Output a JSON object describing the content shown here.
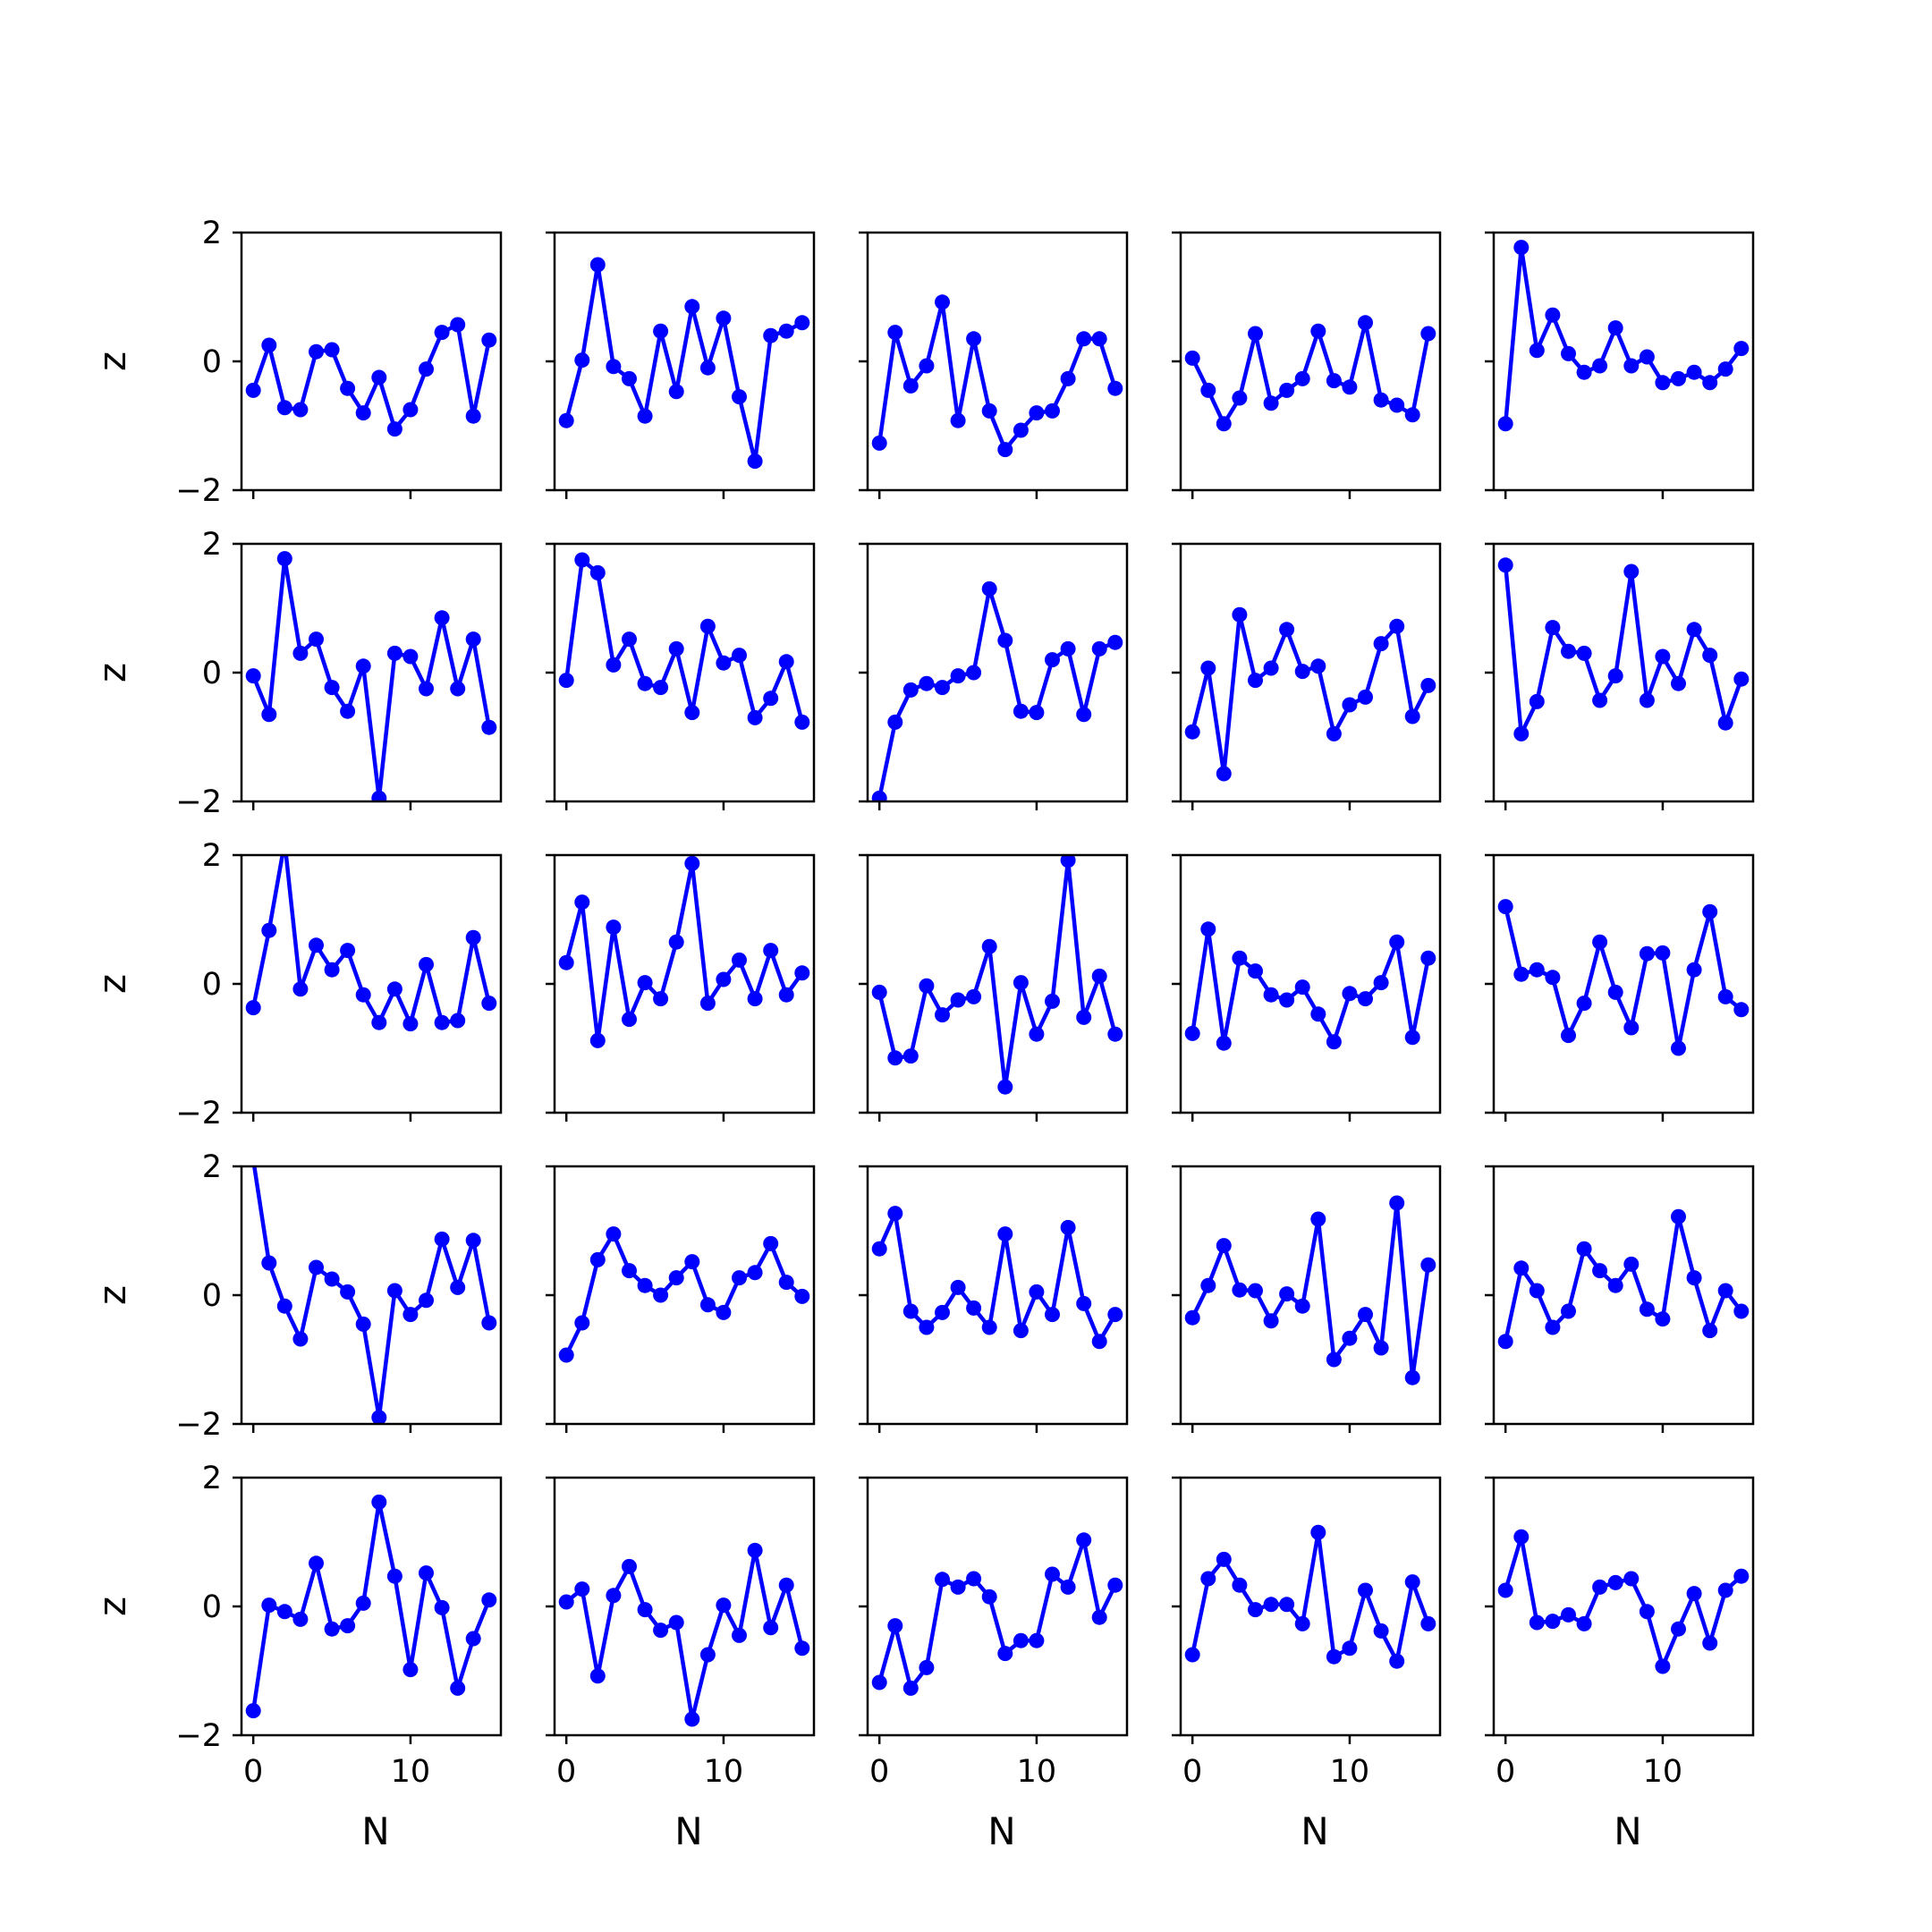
{
  "chart_data": {
    "type": "line",
    "layout": "5x5 grid of small multiples, shared x and y axes",
    "xlabel": "N",
    "ylabel": "z",
    "xlim": [
      -0.75,
      15.75
    ],
    "ylim": [
      -2,
      2
    ],
    "xticks": [
      0,
      10
    ],
    "yticks": [
      -2,
      0,
      2
    ],
    "grid": false,
    "legend": "none",
    "line_color": "#0000ff",
    "marker": "circle",
    "x": [
      0,
      1,
      2,
      3,
      4,
      5,
      6,
      7,
      8,
      9,
      10,
      11,
      12,
      13,
      14,
      15
    ],
    "panels": [
      {
        "values": [
          -0.45,
          0.25,
          -0.72,
          -0.75,
          0.15,
          0.18,
          -0.42,
          -0.8,
          -0.25,
          -1.05,
          -0.75,
          -0.12,
          0.45,
          0.57,
          -0.85,
          0.33
        ]
      },
      {
        "values": [
          -0.92,
          0.02,
          1.5,
          -0.08,
          -0.27,
          -0.85,
          0.47,
          -0.47,
          0.85,
          -0.1,
          0.67,
          -0.55,
          -1.55,
          0.4,
          0.47,
          0.6
        ]
      },
      {
        "values": [
          -1.27,
          0.45,
          -0.38,
          -0.07,
          0.92,
          -0.92,
          0.35,
          -0.77,
          -1.37,
          -1.07,
          -0.8,
          -0.77,
          -0.27,
          0.35,
          0.35,
          -0.42
        ]
      },
      {
        "values": [
          0.05,
          -0.45,
          -0.97,
          -0.57,
          0.43,
          -0.65,
          -0.45,
          -0.27,
          0.47,
          -0.3,
          -0.4,
          0.6,
          -0.6,
          -0.68,
          -0.83,
          0.43
        ]
      },
      {
        "values": [
          -0.97,
          1.77,
          0.17,
          0.72,
          0.12,
          -0.17,
          -0.07,
          0.52,
          -0.07,
          0.07,
          -0.33,
          -0.27,
          -0.17,
          -0.33,
          -0.12,
          0.2
        ]
      },
      {
        "values": [
          -0.05,
          -0.65,
          1.77,
          0.3,
          0.52,
          -0.23,
          -0.6,
          0.1,
          -1.95,
          0.3,
          0.25,
          -0.25,
          0.85,
          -0.25,
          0.52,
          -0.85
        ]
      },
      {
        "values": [
          -0.12,
          1.75,
          1.55,
          0.12,
          0.52,
          -0.17,
          -0.23,
          0.37,
          -0.62,
          0.72,
          0.15,
          0.27,
          -0.7,
          -0.4,
          0.17,
          -0.77
        ]
      },
      {
        "values": [
          -1.95,
          -0.77,
          -0.27,
          -0.17,
          -0.23,
          -0.05,
          0.0,
          1.3,
          0.5,
          -0.6,
          -0.62,
          0.2,
          0.37,
          -0.65,
          0.37,
          0.47
        ]
      },
      {
        "values": [
          -0.92,
          0.07,
          -1.57,
          0.9,
          -0.12,
          0.07,
          0.67,
          0.02,
          0.1,
          -0.95,
          -0.5,
          -0.38,
          0.45,
          0.72,
          -0.68,
          -0.2
        ]
      },
      {
        "values": [
          1.67,
          -0.95,
          -0.45,
          0.7,
          0.33,
          0.3,
          -0.43,
          -0.05,
          1.57,
          -0.43,
          0.25,
          -0.17,
          0.67,
          0.27,
          -0.78,
          -0.1
        ]
      },
      {
        "values": [
          -0.37,
          0.83,
          2.2,
          -0.08,
          0.6,
          0.22,
          0.52,
          -0.17,
          -0.6,
          -0.08,
          -0.62,
          0.3,
          -0.6,
          -0.57,
          0.72,
          -0.3
        ]
      },
      {
        "values": [
          0.33,
          1.27,
          -0.88,
          0.88,
          -0.55,
          0.02,
          -0.23,
          0.65,
          1.87,
          -0.3,
          0.07,
          0.37,
          -0.23,
          0.52,
          -0.17,
          0.17
        ]
      },
      {
        "values": [
          -0.13,
          -1.15,
          -1.12,
          -0.03,
          -0.48,
          -0.25,
          -0.2,
          0.58,
          -1.6,
          0.02,
          -0.78,
          -0.27,
          1.92,
          -0.52,
          0.12,
          -0.78
        ]
      },
      {
        "values": [
          -0.77,
          0.85,
          -0.92,
          0.4,
          0.2,
          -0.17,
          -0.25,
          -0.05,
          -0.47,
          -0.9,
          -0.15,
          -0.23,
          0.02,
          0.65,
          -0.83,
          0.4
        ]
      },
      {
        "values": [
          1.2,
          0.15,
          0.22,
          0.1,
          -0.8,
          -0.3,
          0.65,
          -0.13,
          -0.68,
          0.47,
          0.48,
          -1.0,
          0.22,
          1.12,
          -0.2,
          -0.4
        ]
      },
      {
        "values": [
          2.1,
          0.5,
          -0.17,
          -0.68,
          0.43,
          0.25,
          0.05,
          -0.45,
          -1.9,
          0.07,
          -0.3,
          -0.08,
          0.87,
          0.12,
          0.85,
          -0.43
        ]
      },
      {
        "values": [
          -0.93,
          -0.43,
          0.55,
          0.95,
          0.38,
          0.15,
          0.0,
          0.27,
          0.52,
          -0.15,
          -0.27,
          0.27,
          0.35,
          0.8,
          0.2,
          -0.02
        ]
      },
      {
        "values": [
          0.72,
          1.27,
          -0.25,
          -0.5,
          -0.27,
          0.12,
          -0.2,
          -0.5,
          0.95,
          -0.55,
          0.05,
          -0.3,
          1.05,
          -0.13,
          -0.72,
          -0.3
        ]
      },
      {
        "values": [
          -0.35,
          0.15,
          0.77,
          0.08,
          0.07,
          -0.4,
          0.02,
          -0.17,
          1.18,
          -1.0,
          -0.67,
          -0.3,
          -0.82,
          1.43,
          -1.28,
          0.47
        ]
      },
      {
        "values": [
          -0.72,
          0.42,
          0.07,
          -0.5,
          -0.25,
          0.72,
          0.38,
          0.15,
          0.48,
          -0.22,
          -0.37,
          1.22,
          0.27,
          -0.55,
          0.07,
          -0.25
        ]
      },
      {
        "values": [
          -1.62,
          0.02,
          -0.08,
          -0.2,
          0.67,
          -0.35,
          -0.3,
          0.05,
          1.62,
          0.47,
          -0.98,
          0.52,
          -0.02,
          -1.27,
          -0.5,
          0.1
        ]
      },
      {
        "values": [
          0.07,
          0.27,
          -1.08,
          0.17,
          0.62,
          -0.05,
          -0.37,
          -0.25,
          -1.75,
          -0.75,
          0.02,
          -0.45,
          0.87,
          -0.33,
          0.33,
          -0.65
        ]
      },
      {
        "values": [
          -1.18,
          -0.3,
          -1.27,
          -0.95,
          0.42,
          0.3,
          0.43,
          0.15,
          -0.73,
          -0.53,
          -0.53,
          0.5,
          0.3,
          1.03,
          -0.17,
          0.33
        ]
      },
      {
        "values": [
          -0.75,
          0.43,
          0.73,
          0.33,
          -0.05,
          0.03,
          0.03,
          -0.27,
          1.15,
          -0.78,
          -0.65,
          0.25,
          -0.38,
          -0.85,
          0.38,
          -0.27
        ]
      },
      {
        "values": [
          0.25,
          1.08,
          -0.25,
          -0.23,
          -0.13,
          -0.27,
          0.3,
          0.37,
          0.43,
          -0.08,
          -0.93,
          -0.35,
          0.2,
          -0.57,
          0.25,
          0.47
        ]
      }
    ]
  }
}
